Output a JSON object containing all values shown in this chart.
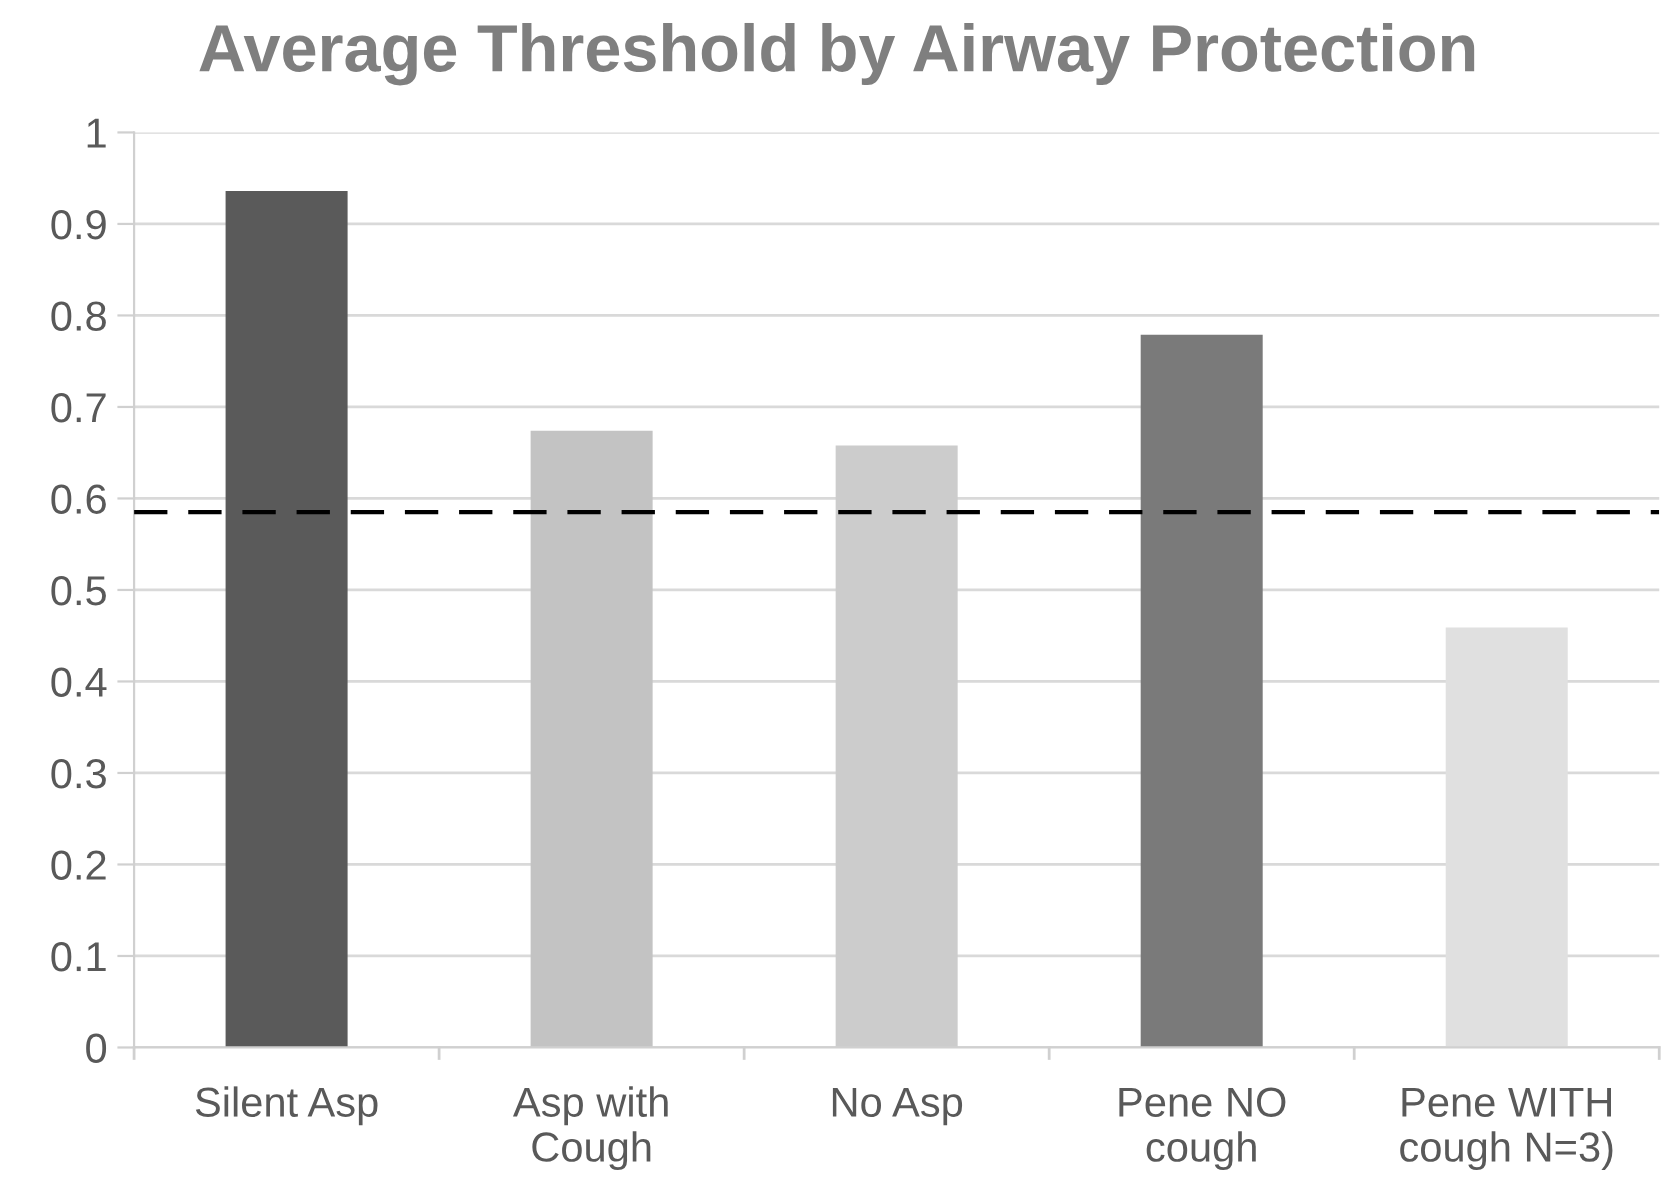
{
  "chart_data": {
    "type": "bar",
    "title": "Average Threshold by Airway Protection",
    "categories": [
      "Silent Asp",
      "Asp with\nCough",
      "No Asp",
      "Pene NO\ncough",
      "Pene WITH\ncough N=3)"
    ],
    "values": [
      0.936,
      0.674,
      0.658,
      0.779,
      0.459
    ],
    "colors": [
      "#5a5a5a",
      "#c3c3c3",
      "#cccccc",
      "#7a7a7a",
      "#e0e0e0"
    ],
    "ylim": [
      0,
      1
    ],
    "yticks": [
      0,
      0.1,
      0.2,
      0.3,
      0.4,
      0.5,
      0.6,
      0.7,
      0.8,
      0.9,
      1
    ],
    "grid": "y",
    "ref_lines": [
      {
        "axis": "y",
        "value": 0.585,
        "color": "#000000",
        "line_style": "dashed"
      }
    ]
  }
}
